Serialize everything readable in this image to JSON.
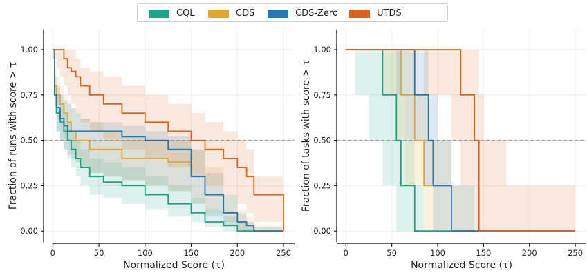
{
  "legend": [
    {
      "name": "CQL",
      "color": "#1aa584"
    },
    {
      "name": "CDS",
      "color": "#e3a72f"
    },
    {
      "name": "CDS-Zero",
      "color": "#2378b5"
    },
    {
      "name": "UTDS",
      "color": "#d8651c"
    }
  ],
  "chart_data": [
    {
      "type": "line",
      "title": "",
      "xlabel": "Normalized Score (τ)",
      "ylabel": "Fraction of runs with score > τ",
      "xlim": [
        -10,
        262
      ],
      "ylim": [
        -0.06,
        1.11
      ],
      "xticks": [
        0,
        50,
        100,
        150,
        200,
        250
      ],
      "yticks": [
        0.0,
        0.25,
        0.5,
        0.75,
        1.0
      ],
      "ytick_labels": [
        "0.00",
        "0.25",
        "0.50",
        "0.75",
        "1.00"
      ],
      "reference_line": {
        "y": 0.5,
        "style": "dashed"
      },
      "grid": true,
      "series": [
        {
          "name": "CQL",
          "x": [
            0,
            2,
            4,
            8,
            12,
            16,
            20,
            25,
            30,
            40,
            55,
            75,
            100,
            125,
            150,
            165,
            185,
            200,
            210,
            218,
            250
          ],
          "y": [
            1.0,
            0.75,
            0.65,
            0.6,
            0.55,
            0.5,
            0.45,
            0.4,
            0.35,
            0.3,
            0.27,
            0.25,
            0.2,
            0.15,
            0.1,
            0.05,
            0.03,
            0.0,
            0.0,
            0.0,
            0.0
          ],
          "lower": [
            0.95,
            0.7,
            0.55,
            0.5,
            0.45,
            0.4,
            0.35,
            0.3,
            0.25,
            0.2,
            0.18,
            0.15,
            0.12,
            0.08,
            0.05,
            0.02,
            0.0,
            0.0,
            0.0,
            0.0,
            0.0
          ],
          "upper": [
            1.0,
            0.8,
            0.75,
            0.7,
            0.65,
            0.6,
            0.55,
            0.5,
            0.45,
            0.4,
            0.38,
            0.35,
            0.3,
            0.25,
            0.18,
            0.12,
            0.08,
            0.05,
            0.02,
            0.0,
            0.0
          ]
        },
        {
          "name": "CDS",
          "x": [
            0,
            2,
            4,
            8,
            12,
            16,
            20,
            25,
            30,
            40,
            55,
            75,
            100,
            125,
            150,
            165,
            185,
            200,
            210,
            218,
            250
          ],
          "y": [
            1.0,
            0.8,
            0.75,
            0.7,
            0.65,
            0.6,
            0.55,
            0.5,
            0.5,
            0.45,
            0.45,
            0.4,
            0.4,
            0.38,
            0.3,
            0.2,
            0.1,
            0.05,
            0.03,
            0.0,
            0.0
          ],
          "lower": [
            0.95,
            0.7,
            0.62,
            0.55,
            0.5,
            0.45,
            0.42,
            0.38,
            0.35,
            0.32,
            0.3,
            0.28,
            0.25,
            0.22,
            0.15,
            0.1,
            0.05,
            0.0,
            0.0,
            0.0,
            0.0
          ],
          "upper": [
            1.0,
            0.9,
            0.85,
            0.8,
            0.75,
            0.72,
            0.68,
            0.65,
            0.62,
            0.6,
            0.55,
            0.52,
            0.5,
            0.5,
            0.45,
            0.35,
            0.2,
            0.12,
            0.08,
            0.03,
            0.0
          ]
        },
        {
          "name": "CDS-Zero",
          "x": [
            0,
            2,
            4,
            8,
            12,
            16,
            20,
            25,
            30,
            40,
            55,
            75,
            100,
            125,
            150,
            165,
            185,
            200,
            210,
            218,
            250
          ],
          "y": [
            1.0,
            0.75,
            0.68,
            0.62,
            0.58,
            0.55,
            0.55,
            0.55,
            0.55,
            0.55,
            0.55,
            0.52,
            0.5,
            0.45,
            0.3,
            0.2,
            0.1,
            0.05,
            0.03,
            0.0,
            0.0
          ],
          "lower": [
            0.95,
            0.65,
            0.55,
            0.5,
            0.45,
            0.42,
            0.4,
            0.38,
            0.35,
            0.32,
            0.3,
            0.28,
            0.25,
            0.22,
            0.15,
            0.08,
            0.03,
            0.0,
            0.0,
            0.0,
            0.0
          ],
          "upper": [
            1.0,
            0.85,
            0.8,
            0.75,
            0.72,
            0.7,
            0.68,
            0.65,
            0.62,
            0.6,
            0.6,
            0.58,
            0.55,
            0.52,
            0.45,
            0.32,
            0.2,
            0.1,
            0.05,
            0.02,
            0.0
          ]
        },
        {
          "name": "UTDS",
          "x": [
            0,
            2,
            4,
            8,
            12,
            16,
            20,
            25,
            30,
            40,
            55,
            75,
            100,
            125,
            150,
            165,
            185,
            200,
            210,
            218,
            250
          ],
          "y": [
            1.0,
            1.0,
            1.0,
            1.0,
            0.95,
            0.9,
            0.88,
            0.85,
            0.8,
            0.75,
            0.7,
            0.65,
            0.6,
            0.55,
            0.5,
            0.45,
            0.4,
            0.35,
            0.3,
            0.2,
            0.0
          ],
          "lower": [
            1.0,
            0.95,
            0.9,
            0.85,
            0.8,
            0.75,
            0.7,
            0.65,
            0.6,
            0.55,
            0.5,
            0.45,
            0.4,
            0.35,
            0.3,
            0.25,
            0.2,
            0.15,
            0.1,
            0.05,
            0.0
          ],
          "upper": [
            1.0,
            1.0,
            1.0,
            1.0,
            1.0,
            1.0,
            1.0,
            0.95,
            0.9,
            0.88,
            0.85,
            0.8,
            0.75,
            0.7,
            0.65,
            0.6,
            0.55,
            0.5,
            0.45,
            0.3,
            0.0
          ]
        }
      ]
    },
    {
      "type": "line",
      "title": "",
      "xlabel": "Normalized Score (τ)",
      "ylabel": "Fraction of tasks with score > τ",
      "xlim": [
        -10,
        262
      ],
      "ylim": [
        -0.06,
        1.11
      ],
      "xticks": [
        0,
        50,
        100,
        150,
        200,
        250
      ],
      "yticks": [
        0.0,
        0.25,
        0.5,
        0.75,
        1.0
      ],
      "ytick_labels": [
        "0.00",
        "0.25",
        "0.50",
        "0.75",
        "1.00"
      ],
      "reference_line": {
        "y": 0.5,
        "style": "dashed"
      },
      "grid": true,
      "series": [
        {
          "name": "CQL",
          "x": [
            0,
            10,
            25,
            40,
            55,
            60,
            65,
            75,
            85,
            90,
            95,
            100,
            115,
            125,
            140,
            145,
            150,
            175,
            190,
            250
          ],
          "y": [
            1.0,
            1.0,
            1.0,
            0.75,
            0.5,
            0.25,
            0.25,
            0.0,
            0.0,
            0.0,
            0.0,
            0.0,
            0.0,
            0.0,
            0.0,
            0.0,
            0.0,
            0.0,
            0.0,
            0.0
          ],
          "lower": [
            1.0,
            0.75,
            0.5,
            0.25,
            0.0,
            0.0,
            0.0,
            0.0,
            0.0,
            0.0,
            0.0,
            0.0,
            0.0,
            0.0,
            0.0,
            0.0,
            0.0,
            0.0,
            0.0,
            0.0
          ],
          "upper": [
            1.0,
            1.0,
            1.0,
            1.0,
            1.0,
            0.75,
            0.5,
            0.25,
            0.0,
            0.0,
            0.0,
            0.0,
            0.0,
            0.0,
            0.0,
            0.0,
            0.0,
            0.0,
            0.0,
            0.0
          ]
        },
        {
          "name": "CDS",
          "x": [
            0,
            10,
            25,
            40,
            55,
            60,
            65,
            75,
            85,
            90,
            95,
            100,
            115,
            125,
            140,
            145,
            150,
            175,
            190,
            250
          ],
          "y": [
            1.0,
            1.0,
            1.0,
            1.0,
            1.0,
            0.75,
            0.75,
            0.5,
            0.25,
            0.25,
            0.25,
            0.25,
            0.0,
            0.0,
            0.0,
            0.0,
            0.0,
            0.0,
            0.0,
            0.0
          ],
          "lower": [
            1.0,
            1.0,
            1.0,
            0.75,
            0.5,
            0.5,
            0.25,
            0.25,
            0.0,
            0.0,
            0.0,
            0.0,
            0.0,
            0.0,
            0.0,
            0.0,
            0.0,
            0.0,
            0.0,
            0.0
          ],
          "upper": [
            1.0,
            1.0,
            1.0,
            1.0,
            1.0,
            1.0,
            1.0,
            0.75,
            0.75,
            0.5,
            0.5,
            0.5,
            0.25,
            0.25,
            0.0,
            0.0,
            0.0,
            0.0,
            0.0,
            0.0
          ]
        },
        {
          "name": "CDS-Zero",
          "x": [
            0,
            10,
            25,
            40,
            55,
            60,
            65,
            75,
            85,
            90,
            95,
            100,
            115,
            125,
            140,
            145,
            150,
            175,
            190,
            250
          ],
          "y": [
            1.0,
            1.0,
            1.0,
            1.0,
            1.0,
            1.0,
            1.0,
            0.75,
            0.75,
            0.5,
            0.25,
            0.25,
            0.0,
            0.0,
            0.0,
            0.0,
            0.0,
            0.0,
            0.0,
            0.0
          ],
          "lower": [
            1.0,
            1.0,
            1.0,
            1.0,
            0.75,
            0.75,
            0.5,
            0.5,
            0.25,
            0.25,
            0.0,
            0.0,
            0.0,
            0.0,
            0.0,
            0.0,
            0.0,
            0.0,
            0.0,
            0.0
          ],
          "upper": [
            1.0,
            1.0,
            1.0,
            1.0,
            1.0,
            1.0,
            1.0,
            1.0,
            1.0,
            0.75,
            0.75,
            0.5,
            0.25,
            0.25,
            0.0,
            0.0,
            0.0,
            0.0,
            0.0,
            0.0
          ]
        },
        {
          "name": "UTDS",
          "x": [
            0,
            10,
            25,
            40,
            55,
            60,
            65,
            75,
            85,
            90,
            95,
            100,
            115,
            125,
            140,
            145,
            150,
            175,
            190,
            250
          ],
          "y": [
            1.0,
            1.0,
            1.0,
            1.0,
            1.0,
            1.0,
            1.0,
            1.0,
            1.0,
            1.0,
            1.0,
            1.0,
            1.0,
            0.75,
            0.5,
            0.0,
            0.0,
            0.0,
            0.0,
            0.0
          ],
          "lower": [
            1.0,
            1.0,
            1.0,
            1.0,
            1.0,
            1.0,
            1.0,
            1.0,
            0.75,
            0.75,
            0.75,
            0.75,
            0.5,
            0.25,
            0.0,
            0.0,
            0.0,
            0.0,
            0.0,
            0.0
          ],
          "upper": [
            1.0,
            1.0,
            1.0,
            1.0,
            1.0,
            1.0,
            1.0,
            1.0,
            1.0,
            1.0,
            1.0,
            1.0,
            1.0,
            1.0,
            1.0,
            0.75,
            0.5,
            0.25,
            0.25,
            0.0
          ]
        }
      ]
    }
  ]
}
